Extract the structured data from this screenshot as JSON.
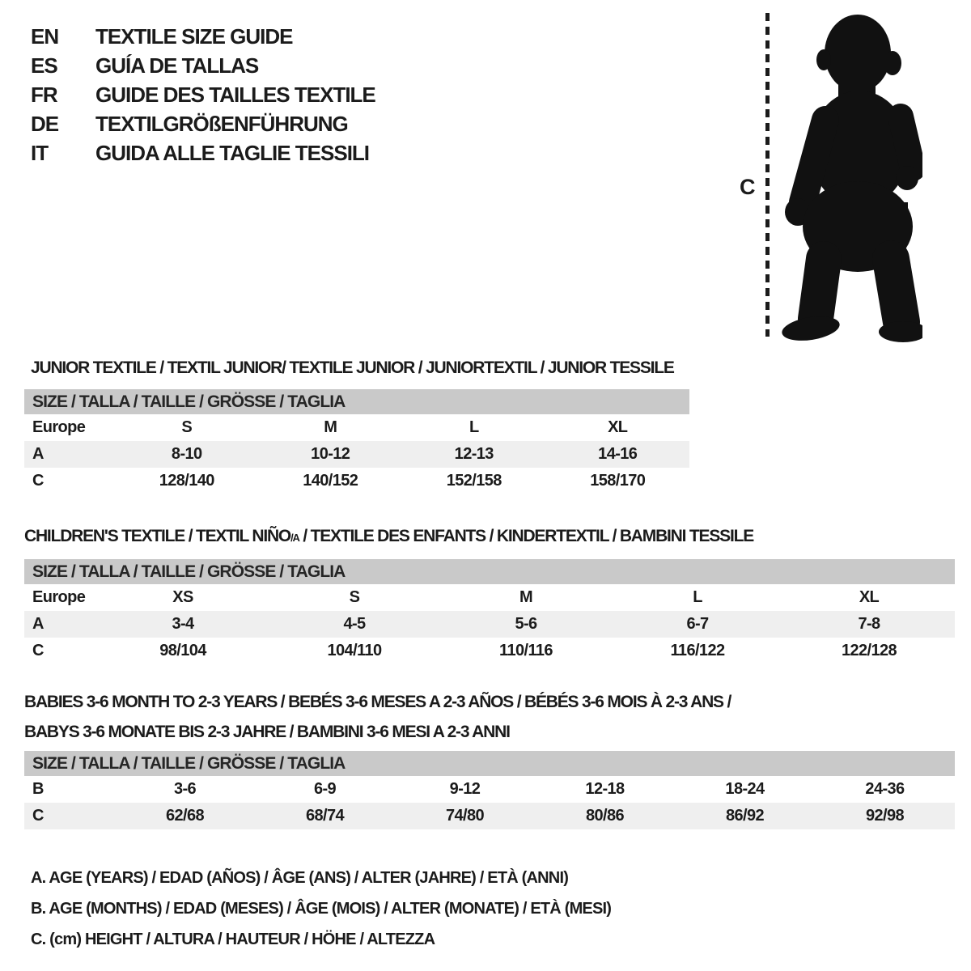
{
  "colors": {
    "ink": "#1b1b1b",
    "bar_bg": "#c9c9c9",
    "row_shaded": "#efefef",
    "sil": "#111111",
    "bg": "#ffffff"
  },
  "languages": [
    {
      "code": "EN",
      "title": "TEXTILE SIZE GUIDE"
    },
    {
      "code": "ES",
      "title": "GUÍA DE TALLAS"
    },
    {
      "code": "FR",
      "title": "GUIDE DES TAILLES TEXTILE"
    },
    {
      "code": "DE",
      "title": "TEXTILGRÖßENFÜHRUNG"
    },
    {
      "code": "IT",
      "title": "GUIDA ALLE TAGLIE TESSILI"
    }
  ],
  "figure": {
    "label": "C",
    "icon": "toddler-silhouette"
  },
  "sections": [
    {
      "id": "junior",
      "heading_lines": [
        [
          {
            "t": "JUNIOR TEXTILE / TEXTIL JUNIOR/ TEXTILE JUNIOR / JUNIORTEXTIL / JUNIOR TESSILE"
          }
        ]
      ],
      "table": {
        "header": "SIZE / TALLA / TAILLE / GRÖSSE / TAGLIA",
        "rows": [
          {
            "label": "Europe",
            "values": [
              "S",
              "M",
              "L",
              "XL"
            ],
            "shaded": false
          },
          {
            "label": "A",
            "values": [
              "8-10",
              "10-12",
              "12-13",
              "14-16"
            ],
            "shaded": true
          },
          {
            "label": "C",
            "values": [
              "128/140",
              "140/152",
              "152/158",
              "158/170"
            ],
            "shaded": false
          }
        ]
      }
    },
    {
      "id": "children",
      "heading_lines": [
        [
          {
            "t": "CHILDREN'S TEXTILE / TEXTIL NIÑO"
          },
          {
            "t": "/A",
            "small": true
          },
          {
            "t": " / TEXTILE DES ENFANTS / KINDERTEXTIL / BAMBINI TESSILE"
          }
        ]
      ],
      "table": {
        "header": "SIZE / TALLA / TAILLE / GRÖSSE / TAGLIA",
        "rows": [
          {
            "label": "Europe",
            "values": [
              "XS",
              "S",
              "M",
              "L",
              "XL"
            ],
            "shaded": false
          },
          {
            "label": "A",
            "values": [
              "3-4",
              "4-5",
              "5-6",
              "6-7",
              "7-8"
            ],
            "shaded": true
          },
          {
            "label": "C",
            "values": [
              "98/104",
              "104/110",
              "110/116",
              "116/122",
              "122/128"
            ],
            "shaded": false
          }
        ]
      }
    },
    {
      "id": "babies",
      "heading_lines": [
        [
          {
            "t": "BABIES 3-6 MONTH TO 2-3 YEARS / BEBÉS 3-6 MESES A 2-3 AÑOS / BÉBÉS 3-6 MOIS À 2-3 ANS /"
          }
        ],
        [
          {
            "t": "BABYS 3-6 MONATE BIS 2-3 JAHRE / BAMBINI 3-6 MESI A 2-3 ANNI"
          }
        ]
      ],
      "table": {
        "header": "SIZE / TALLA / TAILLE / GRÖSSE / TAGLIA",
        "rows": [
          {
            "label": "B",
            "values": [
              "3-6",
              "6-9",
              "9-12",
              "12-18",
              "18-24",
              "24-36"
            ],
            "shaded": false
          },
          {
            "label": "C",
            "values": [
              "62/68",
              "68/74",
              "74/80",
              "80/86",
              "86/92",
              "92/98"
            ],
            "shaded": true
          }
        ]
      }
    }
  ],
  "legend": [
    "A. AGE (YEARS) / EDAD (AÑOS) / ÂGE (ANS) / ALTER (JAHRE) / ETÀ (ANNI)",
    "B. AGE (MONTHS) / EDAD (MESES) / ÂGE (MOIS) / ALTER (MONATE) / ETÀ (MESI)",
    "C. (cm) HEIGHT / ALTURA / HAUTEUR / HÖHE / ALTEZZA"
  ]
}
